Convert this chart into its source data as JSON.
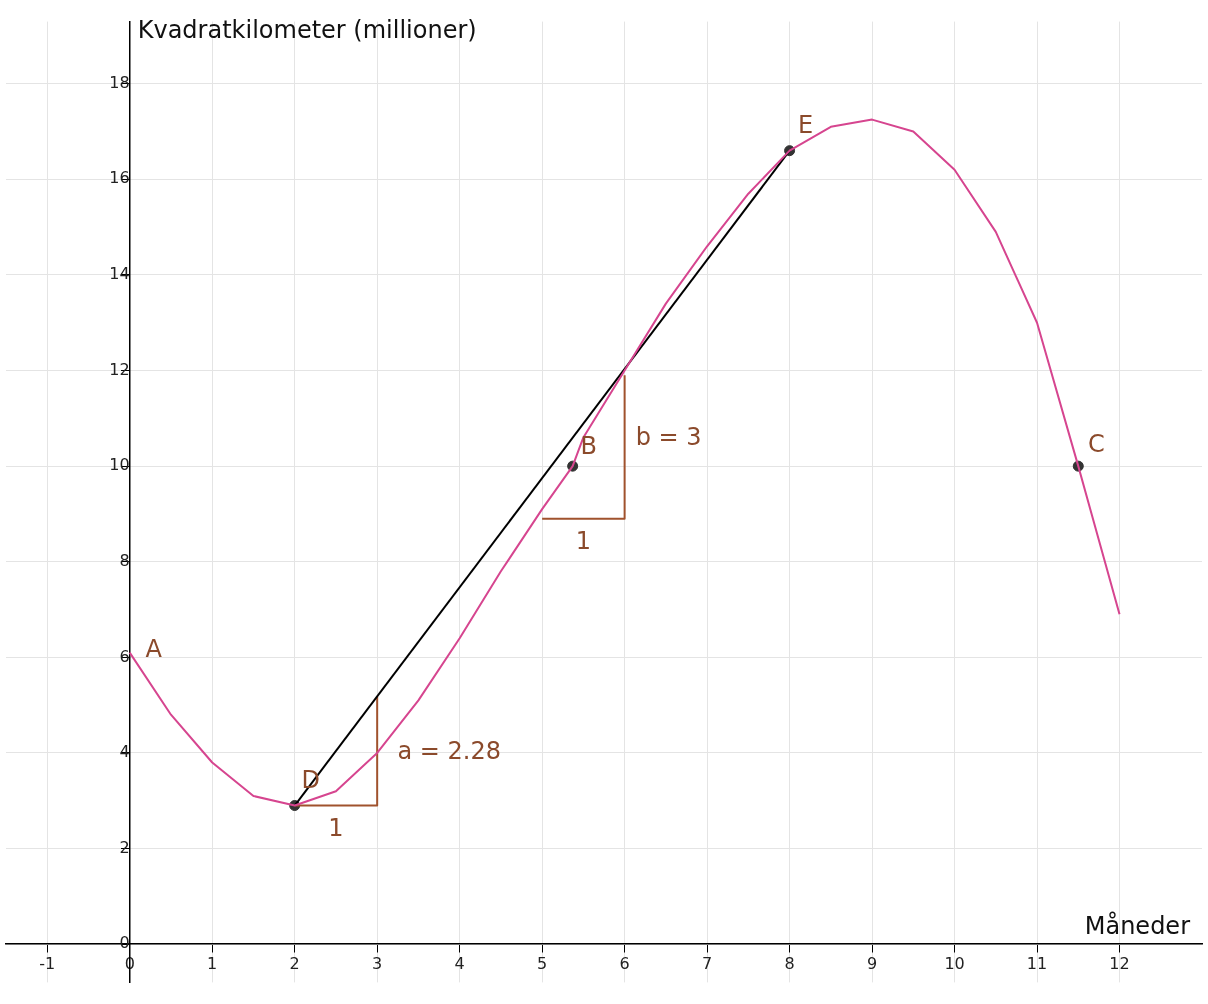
{
  "chart_data": {
    "type": "line",
    "xlabel": "Måneder",
    "ylabel": "Kvadratkilometer (millioner)",
    "xlim": [
      -1.5,
      13
    ],
    "ylim": [
      -0.8,
      19.3
    ],
    "xticks": [
      -1,
      0,
      1,
      2,
      3,
      4,
      5,
      6,
      7,
      8,
      9,
      10,
      11,
      12
    ],
    "yticks": [
      0,
      2,
      4,
      6,
      8,
      10,
      12,
      14,
      16,
      18
    ],
    "grid": true,
    "legend": false,
    "series": [
      {
        "type": "line",
        "color": "#d6458f",
        "marker": "none",
        "x": [
          0,
          0.5,
          1,
          1.5,
          2,
          2.5,
          3,
          3.5,
          4,
          4.5,
          5,
          5.37,
          5.5,
          6,
          6.5,
          7,
          7.5,
          8,
          8.5,
          9,
          9.5,
          10,
          10.5,
          11,
          11.5,
          12
        ],
        "values": [
          6.1,
          4.8,
          3.8,
          3.1,
          2.9,
          3.2,
          4.0,
          5.1,
          6.4,
          7.8,
          9.1,
          10,
          10.6,
          12.0,
          13.4,
          14.6,
          15.7,
          16.6,
          17.1,
          17.25,
          17.0,
          16.2,
          14.9,
          13.0,
          10.0,
          6.9
        ]
      },
      {
        "type": "line",
        "color": "#000000",
        "marker": "none",
        "x": [
          2,
          8
        ],
        "values": [
          2.9,
          16.6
        ]
      },
      {
        "type": "line",
        "color": "#a0522d",
        "marker": "none",
        "x": [
          2,
          3,
          3
        ],
        "values": [
          2.9,
          2.9,
          5.18
        ]
      },
      {
        "type": "line",
        "color": "#a0522d",
        "marker": "none",
        "x": [
          5,
          6,
          6
        ],
        "values": [
          8.9,
          8.9,
          11.9
        ]
      },
      {
        "type": "scatter",
        "color": "#333333",
        "marker": "circle",
        "x": [
          2,
          5.37,
          8,
          11.5
        ],
        "values": [
          2.9,
          10,
          16.6,
          10
        ]
      }
    ],
    "annotations": [
      {
        "text": "A",
        "x": 0,
        "y": 6.1
      },
      {
        "text": "D",
        "x": 2,
        "y": 2.9
      },
      {
        "text": "B",
        "x": 5.37,
        "y": 10
      },
      {
        "text": "E",
        "x": 8,
        "y": 16.6
      },
      {
        "text": "C",
        "x": 11.5,
        "y": 10
      },
      {
        "text": "1",
        "x": 2.5,
        "y": 2.9
      },
      {
        "text": "a = 2.28",
        "x": 3,
        "y": 4.0
      },
      {
        "text": "b = 3",
        "x": 6,
        "y": 10.4
      },
      {
        "text": "1",
        "x": 5.5,
        "y": 8.9
      }
    ]
  }
}
